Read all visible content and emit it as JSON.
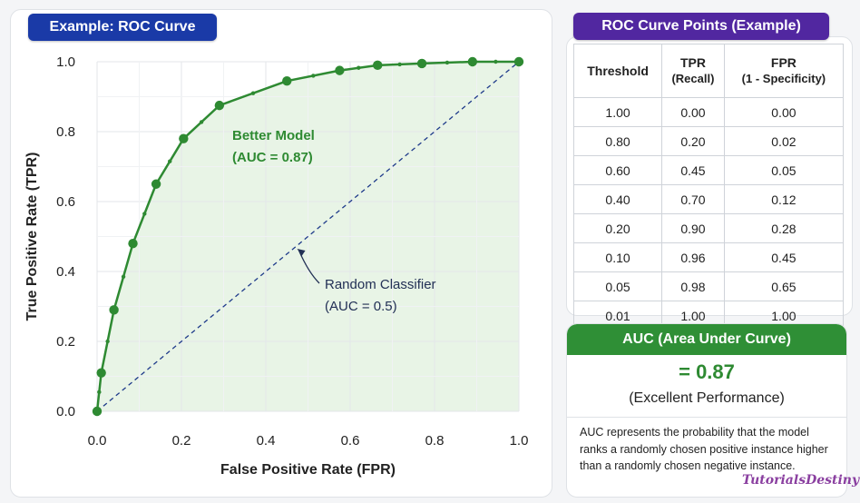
{
  "chart_title": "Example: ROC Curve",
  "table_title": "ROC Curve Points (Example)",
  "chart_data": {
    "type": "line",
    "xlabel": "False Positive Rate (FPR)",
    "ylabel": "True Positive Rate (TPR)",
    "xlim": [
      0,
      1
    ],
    "ylim": [
      0,
      1
    ],
    "xticks": [
      "0.0",
      "0.2",
      "0.4",
      "0.6",
      "0.8",
      "1.0"
    ],
    "yticks": [
      "0.0",
      "0.2",
      "0.4",
      "0.6",
      "0.8",
      "1.0"
    ],
    "grid": true,
    "series": [
      {
        "name": "Better Model",
        "color": "#2e8a32",
        "fill": "#e8f4e6",
        "x": [
          0.0,
          0.01,
          0.04,
          0.085,
          0.14,
          0.205,
          0.29,
          0.45,
          0.575,
          0.665,
          0.77,
          0.89,
          1.0
        ],
        "y": [
          0.0,
          0.11,
          0.29,
          0.48,
          0.65,
          0.78,
          0.875,
          0.945,
          0.975,
          0.99,
          0.995,
          1.0,
          1.0
        ]
      },
      {
        "name": "Random Classifier",
        "color": "#1e3a8a",
        "dashed": true,
        "x": [
          0,
          1
        ],
        "y": [
          0,
          1
        ]
      }
    ],
    "annotations": [
      {
        "text": [
          "Better Model",
          "(AUC = 0.87)"
        ]
      },
      {
        "text": [
          "Random Classifier",
          "(AUC = 0.5)"
        ]
      }
    ]
  },
  "table": {
    "headers": [
      [
        "Threshold"
      ],
      [
        "TPR",
        "(Recall)"
      ],
      [
        "FPR",
        "(1 - Specificity)"
      ]
    ],
    "rows": [
      [
        "1.00",
        "0.00",
        "0.00"
      ],
      [
        "0.80",
        "0.20",
        "0.02"
      ],
      [
        "0.60",
        "0.45",
        "0.05"
      ],
      [
        "0.40",
        "0.70",
        "0.12"
      ],
      [
        "0.20",
        "0.90",
        "0.28"
      ],
      [
        "0.10",
        "0.96",
        "0.45"
      ],
      [
        "0.05",
        "0.98",
        "0.65"
      ],
      [
        "0.01",
        "1.00",
        "1.00"
      ]
    ]
  },
  "auc": {
    "title": "AUC (Area Under Curve)",
    "value": "= 0.87",
    "performance": "(Excellent Performance)",
    "description": "AUC represents the probability that the model ranks a randomly chosen positive instance higher than a randomly chosen negative instance."
  },
  "watermark": "TutorialsDestiny"
}
